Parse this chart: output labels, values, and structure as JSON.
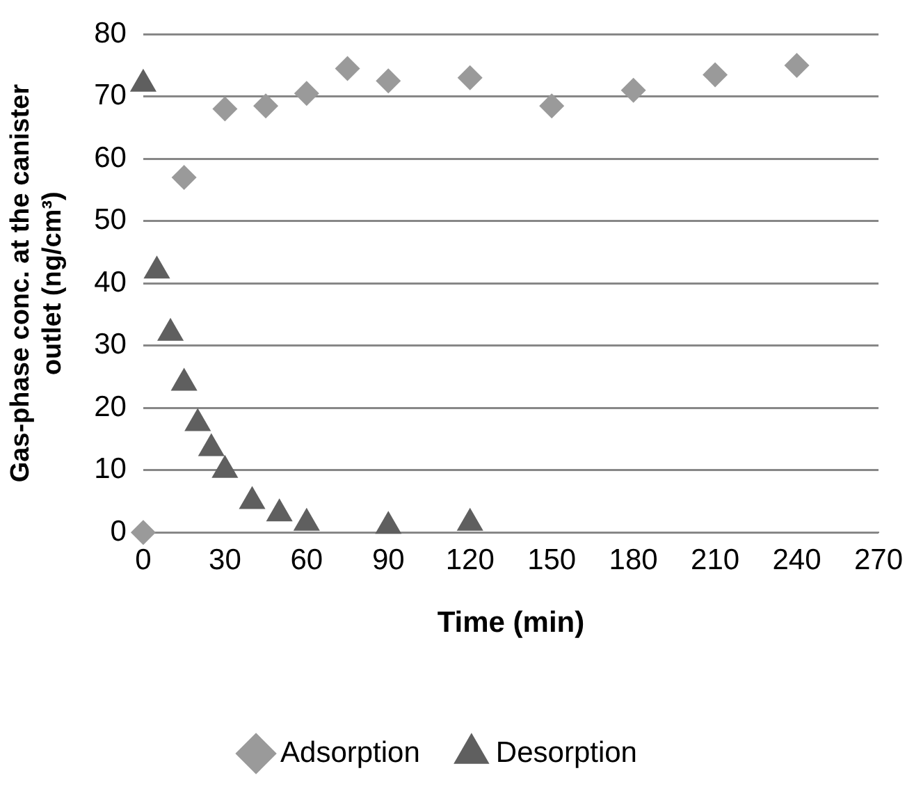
{
  "chart_data": {
    "type": "scatter",
    "xlabel": "Time (min)",
    "ylabel": "Gas-phase conc. at the canister outlet (ng/cm³)",
    "xlim": [
      0,
      270
    ],
    "xticks": [
      0,
      30,
      60,
      90,
      120,
      150,
      180,
      210,
      240,
      270
    ],
    "ylim": [
      0,
      80
    ],
    "yticks": [
      0,
      10,
      20,
      30,
      40,
      50,
      60,
      70,
      80
    ],
    "grid": "y",
    "legend": "bottom",
    "series": [
      {
        "name": "Adsorption",
        "color": "#9a9a9a",
        "marker": "diamond",
        "x": [
          0,
          15,
          30,
          45,
          60,
          75,
          90,
          120,
          150,
          180,
          210,
          240
        ],
        "values": [
          0,
          57,
          68,
          68.5,
          70.5,
          74.5,
          72.5,
          73,
          68.5,
          71,
          73.5,
          75
        ]
      },
      {
        "name": "Desorption",
        "color": "#5f5f5f",
        "marker": "triangle",
        "x": [
          0,
          5,
          10,
          15,
          20,
          25,
          30,
          40,
          50,
          60,
          90,
          120
        ],
        "values": [
          72,
          42,
          32,
          24,
          17.5,
          13.5,
          10,
          5,
          3,
          1.5,
          1,
          1.5
        ]
      }
    ]
  }
}
